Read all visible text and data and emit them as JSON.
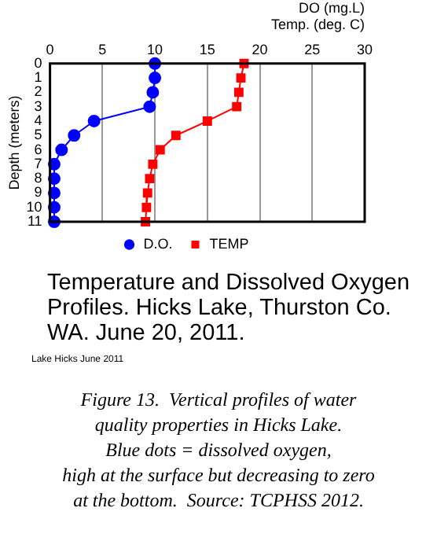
{
  "chart_data": {
    "type": "line",
    "title": "Temperature and Dissolved Oxygen Profiles. Hicks Lake, Thurston Co. WA.  June 20, 2011.",
    "xlabel": "DO (mg.L)\nTemp. (deg. C)",
    "ylabel": "Depth (meters)",
    "series": [
      {
        "name": "D.O.",
        "color": "#0000ff",
        "marker": "circle",
        "x": [
          10,
          10,
          9.8,
          9.5,
          4.2,
          2.3,
          1.1,
          0.4,
          0.4,
          0.4,
          0.4,
          0.4
        ],
        "values": [
          0,
          1,
          2,
          3,
          4,
          5,
          6,
          7,
          8,
          9,
          10,
          11
        ]
      },
      {
        "name": "TEMP",
        "color": "#ff0000",
        "marker": "square",
        "x": [
          18.5,
          18.2,
          18,
          17.8,
          15,
          12,
          10.5,
          9.8,
          9.5,
          9.3,
          9.2,
          9.1
        ],
        "values": [
          0,
          1,
          2,
          3,
          4,
          5,
          6,
          7,
          8,
          9,
          10,
          11
        ]
      }
    ],
    "xlim": [
      0,
      30
    ],
    "xticks": [
      0,
      5,
      10,
      15,
      20,
      25,
      30
    ],
    "ylim": [
      11,
      0
    ],
    "yticks": [
      0,
      1,
      2,
      3,
      4,
      5,
      6,
      7,
      8,
      9,
      10,
      11
    ],
    "grid": "x",
    "legend": "bottom",
    "line_style": "solid",
    "annotations": [
      "Lake Hicks June 2011",
      "Figure 13.  Vertical profiles of water\nquality properties in Hicks Lake.\nBlue dots = dissolved oxygen,\nhigh at the surface but decreasing to zero\nat the bottom.  Source: TCPHSS 2012."
    ]
  }
}
